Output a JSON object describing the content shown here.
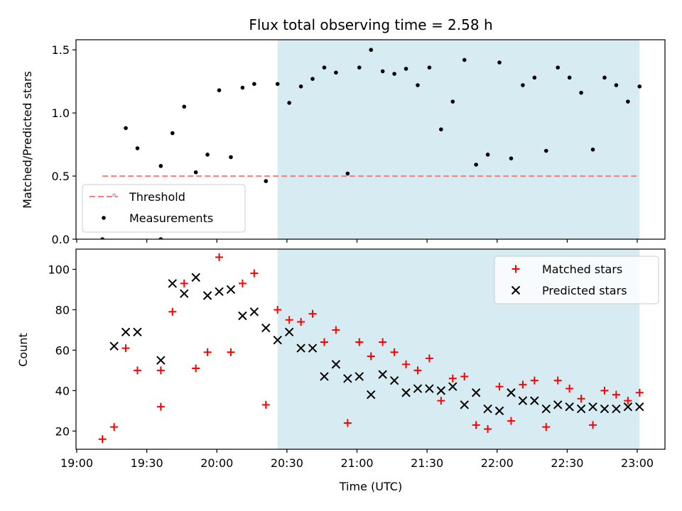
{
  "chart_data": [
    {
      "type": "scatter",
      "title": "Flux total observing time = 2.58 h",
      "ylabel": "Matched/Predicted stars",
      "ylim": [
        0,
        1.58
      ],
      "yticks": [
        0,
        0.5,
        1.0,
        1.5
      ],
      "ytick_labels": [
        "0.0",
        "0.5",
        "1.0",
        "1.5"
      ],
      "xlim": [
        "19:00",
        "23:00"
      ],
      "threshold": {
        "name": "Threshold",
        "value": 0.5,
        "x_start": "19:11",
        "x_end": "23:01",
        "color": "#f08080"
      },
      "shaded_interval": {
        "start": "20:26",
        "end": "23:01",
        "color": "#add8e6"
      },
      "series": [
        {
          "name": "Measurements",
          "color": "#000000",
          "points": [
            [
              "19:11",
              0.0
            ],
            [
              "19:16",
              0.35
            ],
            [
              "19:21",
              0.88
            ],
            [
              "19:26",
              0.72
            ],
            [
              "19:36",
              0.58
            ],
            [
              "19:41",
              0.84
            ],
            [
              "19:46",
              1.05
            ],
            [
              "19:51",
              0.53
            ],
            [
              "19:56",
              0.67
            ],
            [
              "20:01",
              1.18
            ],
            [
              "20:06",
              0.65
            ],
            [
              "20:11",
              1.2
            ],
            [
              "20:16",
              1.23
            ],
            [
              "20:21",
              0.46
            ],
            [
              "20:26",
              1.23
            ],
            [
              "20:31",
              1.08
            ],
            [
              "20:36",
              1.21
            ],
            [
              "20:41",
              1.27
            ],
            [
              "20:46",
              1.36
            ],
            [
              "20:51",
              1.32
            ],
            [
              "20:56",
              0.52
            ],
            [
              "21:01",
              1.36
            ],
            [
              "21:06",
              1.5
            ],
            [
              "21:11",
              1.33
            ],
            [
              "21:16",
              1.31
            ],
            [
              "21:21",
              1.35
            ],
            [
              "21:26",
              1.22
            ],
            [
              "21:31",
              1.36
            ],
            [
              "21:36",
              0.87
            ],
            [
              "21:41",
              1.09
            ],
            [
              "21:46",
              1.42
            ],
            [
              "21:51",
              0.59
            ],
            [
              "21:56",
              0.67
            ],
            [
              "22:01",
              1.4
            ],
            [
              "22:06",
              0.64
            ],
            [
              "22:11",
              1.22
            ],
            [
              "22:16",
              1.28
            ],
            [
              "22:21",
              0.7
            ],
            [
              "22:26",
              1.36
            ],
            [
              "22:31",
              1.28
            ],
            [
              "22:36",
              1.16
            ],
            [
              "22:41",
              0.71
            ],
            [
              "22:46",
              1.28
            ],
            [
              "22:51",
              1.22
            ],
            [
              "22:56",
              1.09
            ],
            [
              "23:01",
              1.21
            ]
          ]
        }
      ],
      "extra_points": [
        [
          "19:36",
          0.0
        ]
      ],
      "legend": {
        "position": "lower-left",
        "entries": [
          "Threshold",
          "Measurements"
        ]
      }
    },
    {
      "type": "scatter",
      "xlabel": "Time (UTC)",
      "ylabel": "Count",
      "ylim": [
        11,
        110
      ],
      "yticks": [
        20,
        40,
        60,
        80,
        100
      ],
      "xticks": [
        "19:00",
        "19:30",
        "20:00",
        "20:30",
        "21:00",
        "21:30",
        "22:00",
        "22:30",
        "23:00"
      ],
      "xlim": [
        "19:00",
        "23:00"
      ],
      "shaded_interval": {
        "start": "20:26",
        "end": "23:01",
        "color": "#add8e6"
      },
      "series": [
        {
          "name": "Matched stars",
          "marker": "plus",
          "color": "#ff0000",
          "points": [
            [
              "19:11",
              16
            ],
            [
              "19:16",
              22
            ],
            [
              "19:21",
              61
            ],
            [
              "19:26",
              50
            ],
            [
              "19:36",
              50
            ],
            [
              "19:36",
              32
            ],
            [
              "19:41",
              79
            ],
            [
              "19:46",
              93
            ],
            [
              "19:51",
              51
            ],
            [
              "19:56",
              59
            ],
            [
              "20:01",
              106
            ],
            [
              "20:06",
              59
            ],
            [
              "20:11",
              93
            ],
            [
              "20:16",
              98
            ],
            [
              "20:21",
              33
            ],
            [
              "20:26",
              80
            ],
            [
              "20:31",
              75
            ],
            [
              "20:36",
              74
            ],
            [
              "20:41",
              78
            ],
            [
              "20:46",
              64
            ],
            [
              "20:51",
              70
            ],
            [
              "20:56",
              24
            ],
            [
              "21:01",
              64
            ],
            [
              "21:06",
              57
            ],
            [
              "21:11",
              64
            ],
            [
              "21:16",
              59
            ],
            [
              "21:21",
              53
            ],
            [
              "21:26",
              50
            ],
            [
              "21:31",
              56
            ],
            [
              "21:36",
              35
            ],
            [
              "21:41",
              46
            ],
            [
              "21:46",
              47
            ],
            [
              "21:51",
              23
            ],
            [
              "21:56",
              21
            ],
            [
              "22:01",
              42
            ],
            [
              "22:06",
              25
            ],
            [
              "22:11",
              43
            ],
            [
              "22:16",
              45
            ],
            [
              "22:21",
              22
            ],
            [
              "22:26",
              45
            ],
            [
              "22:31",
              41
            ],
            [
              "22:36",
              36
            ],
            [
              "22:41",
              23
            ],
            [
              "22:46",
              40
            ],
            [
              "22:51",
              38
            ],
            [
              "22:56",
              35
            ],
            [
              "23:01",
              39
            ]
          ]
        },
        {
          "name": "Predicted stars",
          "marker": "x",
          "color": "#000000",
          "points": [
            [
              "19:16",
              62
            ],
            [
              "19:21",
              69
            ],
            [
              "19:26",
              69
            ],
            [
              "19:36",
              55
            ],
            [
              "19:41",
              93
            ],
            [
              "19:46",
              88
            ],
            [
              "19:51",
              96
            ],
            [
              "19:56",
              87
            ],
            [
              "20:01",
              89
            ],
            [
              "20:06",
              90
            ],
            [
              "20:11",
              77
            ],
            [
              "20:16",
              79
            ],
            [
              "20:21",
              71
            ],
            [
              "20:26",
              65
            ],
            [
              "20:31",
              69
            ],
            [
              "20:36",
              61
            ],
            [
              "20:41",
              61
            ],
            [
              "20:46",
              47
            ],
            [
              "20:51",
              53
            ],
            [
              "20:56",
              46
            ],
            [
              "21:01",
              47
            ],
            [
              "21:06",
              38
            ],
            [
              "21:11",
              48
            ],
            [
              "21:16",
              45
            ],
            [
              "21:21",
              39
            ],
            [
              "21:26",
              41
            ],
            [
              "21:31",
              41
            ],
            [
              "21:36",
              40
            ],
            [
              "21:41",
              42
            ],
            [
              "21:46",
              33
            ],
            [
              "21:51",
              39
            ],
            [
              "21:56",
              31
            ],
            [
              "22:01",
              30
            ],
            [
              "22:06",
              39
            ],
            [
              "22:11",
              35
            ],
            [
              "22:16",
              35
            ],
            [
              "22:21",
              31
            ],
            [
              "22:26",
              33
            ],
            [
              "22:31",
              32
            ],
            [
              "22:36",
              31
            ],
            [
              "22:41",
              32
            ],
            [
              "22:46",
              31
            ],
            [
              "22:51",
              31
            ],
            [
              "22:56",
              32
            ],
            [
              "23:01",
              32
            ]
          ]
        }
      ],
      "legend": {
        "position": "upper-right",
        "entries": [
          "Matched stars",
          "Predicted stars"
        ]
      }
    }
  ]
}
